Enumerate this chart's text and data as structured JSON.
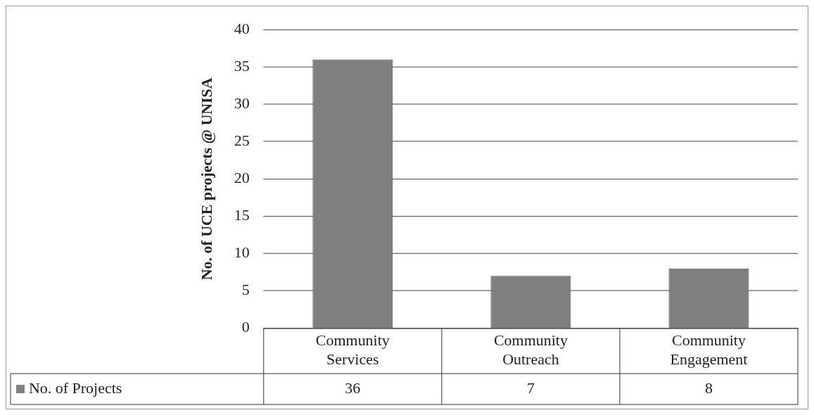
{
  "chart_data": {
    "type": "bar",
    "ylabel": "No. of UCE projects @ UNISA",
    "categories": [
      "Community Services",
      "Community Outreach",
      "Community Engagement"
    ],
    "series": [
      {
        "name": "No. of Projects",
        "color": "#7f7f7f",
        "values": [
          36,
          7,
          8
        ]
      }
    ],
    "ylim": [
      0,
      40
    ],
    "yticks": [
      0,
      5,
      10,
      15,
      20,
      25,
      30,
      35,
      40
    ],
    "grid": "y",
    "legend": "bottom",
    "data_labels": true
  }
}
